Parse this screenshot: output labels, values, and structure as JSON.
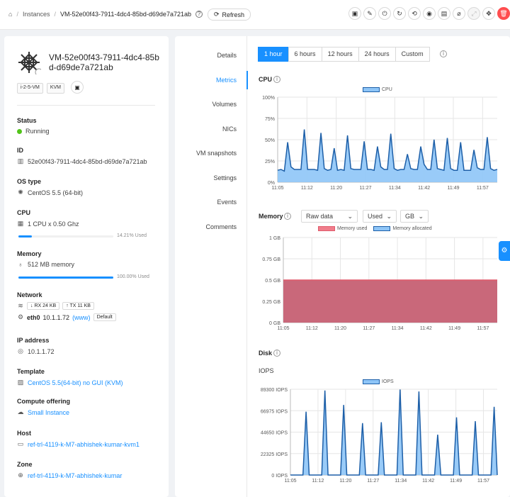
{
  "breadcrumb": {
    "home_icon": "home-icon",
    "instances": "Instances",
    "vm": "VM-52e00f43-7911-4dc4-85bd-d69de7a721ab",
    "refresh": "Refresh"
  },
  "vm": {
    "name": "VM-52e00f43-7911-4dc4-85bd-d69de7a721ab",
    "tags": [
      "i-2-5-VM",
      "KVM"
    ],
    "status_label": "Status",
    "status": "Running",
    "id_label": "ID",
    "id": "52e00f43-7911-4dc4-85bd-d69de7a721ab",
    "os_label": "OS type",
    "os": "CentOS 5.5 (64-bit)",
    "cpu_label": "CPU",
    "cpu": "1 CPU x 0.50 Ghz",
    "cpu_used": "14.21% Used",
    "cpu_used_pct": 14.21,
    "mem_label": "Memory",
    "mem": "512 MB memory",
    "mem_used": "100.00% Used",
    "mem_used_pct": 100,
    "net_label": "Network",
    "rx": "RX 24 KB",
    "tx": "TX 11 KB",
    "nic_name": "eth0",
    "nic_ip": "10.1.1.72",
    "nic_www": "(www)",
    "nic_default": "Default",
    "ip_label": "IP address",
    "ip": "10.1.1.72",
    "template_label": "Template",
    "template": "CentOS 5.5(64-bit) no GUI (KVM)",
    "offering_label": "Compute offering",
    "offering": "Small Instance",
    "host_label": "Host",
    "host": "ref-trl-4119-k-M7-abhishek-kumar-kvm1",
    "zone_label": "Zone",
    "zone": "ref-trl-4119-k-M7-abhishek-kumar"
  },
  "tabs": [
    "Details",
    "Metrics",
    "Volumes",
    "NICs",
    "VM snapshots",
    "Settings",
    "Events",
    "Comments"
  ],
  "active_tab": "Metrics",
  "ranges": [
    "1 hour",
    "6 hours",
    "12 hours",
    "24 hours",
    "Custom"
  ],
  "active_range": "1 hour",
  "memory_controls": {
    "mode": "Raw data",
    "metric": "Used",
    "unit": "GB"
  },
  "colors": {
    "accent": "#1890ff",
    "cpu_fill": "#8ec5f7",
    "cpu_line": "#1d5fa8",
    "mem_fill": "#c9687a",
    "mem_line": "#e05a6b"
  },
  "chart_data": [
    {
      "type": "area",
      "title": "CPU",
      "series_name": "CPU",
      "x_ticks": [
        "11:05",
        "11:12",
        "11:20",
        "11:27",
        "11:34",
        "11:42",
        "11:49",
        "11:57"
      ],
      "y_ticks": [
        "0%",
        "25%",
        "50%",
        "75%",
        "100%"
      ],
      "ylim": [
        0,
        100
      ],
      "values": [
        14,
        15,
        13,
        47,
        18,
        15,
        15,
        15,
        62,
        15,
        15,
        15,
        14,
        58,
        16,
        14,
        15,
        40,
        14,
        15,
        14,
        55,
        16,
        15,
        15,
        15,
        48,
        15,
        15,
        14,
        42,
        18,
        15,
        15,
        57,
        16,
        14,
        15,
        15,
        33,
        16,
        15,
        15,
        42,
        21,
        15,
        15,
        50,
        16,
        15,
        14,
        52,
        16,
        14,
        14,
        47,
        14,
        14,
        14,
        38,
        17,
        15,
        15,
        53,
        16,
        14,
        15
      ]
    },
    {
      "type": "area",
      "title": "Memory",
      "series": [
        {
          "name": "Memory used",
          "value": 0.5
        },
        {
          "name": "Memory allocated",
          "value": 0.5
        }
      ],
      "x_ticks": [
        "11:05",
        "11:12",
        "11:20",
        "11:27",
        "11:34",
        "11:42",
        "11:49",
        "11:57"
      ],
      "y_ticks": [
        "0 GB",
        "0.25 GB",
        "0.5 GB",
        "0.75 GB",
        "1 GB"
      ],
      "ylim": [
        0,
        1
      ]
    },
    {
      "type": "area",
      "title": "Disk",
      "subtitle": "IOPS",
      "series_name": "IOPS",
      "x_ticks": [
        "11:05",
        "11:12",
        "11:20",
        "11:27",
        "11:34",
        "11:42",
        "11:49",
        "11:57"
      ],
      "y_ticks": [
        "0 IOPS",
        "22325 IOPS",
        "44650 IOPS",
        "66975 IOPS",
        "89300 IOPS"
      ],
      "ylim": [
        0,
        89300
      ],
      "values": [
        0,
        0,
        0,
        0,
        0,
        66000,
        0,
        0,
        0,
        0,
        0,
        88000,
        0,
        0,
        0,
        0,
        0,
        73000,
        0,
        0,
        0,
        0,
        0,
        54000,
        0,
        0,
        0,
        0,
        0,
        55000,
        0,
        0,
        0,
        0,
        0,
        89000,
        0,
        0,
        0,
        0,
        0,
        87000,
        0,
        0,
        0,
        0,
        0,
        42000,
        0,
        0,
        0,
        0,
        0,
        60000,
        0,
        0,
        0,
        0,
        0,
        56000,
        0,
        0,
        0,
        0,
        0,
        71000,
        0
      ]
    }
  ]
}
